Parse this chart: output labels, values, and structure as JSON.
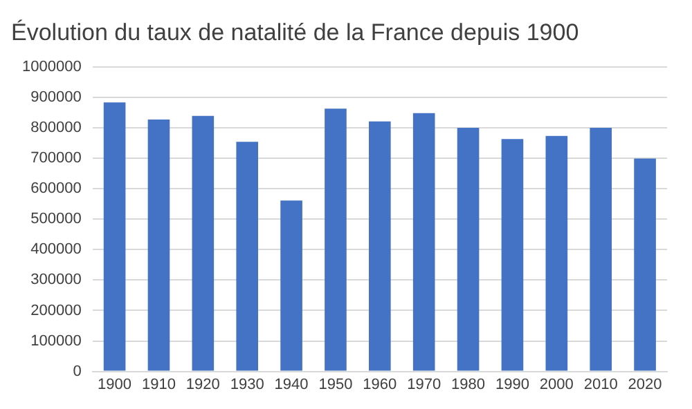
{
  "chart_data": {
    "type": "bar",
    "title": "Évolution du taux de natalité de la France depuis 1900",
    "categories": [
      "1900",
      "1910",
      "1920",
      "1930",
      "1940",
      "1950",
      "1960",
      "1970",
      "1980",
      "1990",
      "2000",
      "2010",
      "2020"
    ],
    "values": [
      883000,
      827000,
      839000,
      754000,
      561000,
      863000,
      821000,
      848000,
      800000,
      763000,
      773000,
      800000,
      699000
    ],
    "color": "#4472c4",
    "ylim": [
      0,
      1000000
    ],
    "yticks": [
      0,
      100000,
      200000,
      300000,
      400000,
      500000,
      600000,
      700000,
      800000,
      900000,
      1000000
    ],
    "grid": "y"
  }
}
